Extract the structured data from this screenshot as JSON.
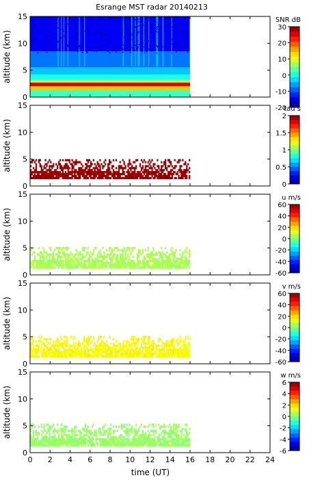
{
  "title": "Esrange MST radar 20140213",
  "xlabel": "time (UT)",
  "x_ticks": [
    "0",
    "2",
    "4",
    "6",
    "8",
    "10",
    "12",
    "14",
    "16",
    "18",
    "20",
    "22",
    "24"
  ],
  "chart_data": [
    {
      "type": "heatmap",
      "ylabel": "altitude (km)",
      "y_ticks": [
        "0",
        "5",
        "10",
        "15"
      ],
      "xlim": [
        0,
        24
      ],
      "ylim": [
        0,
        15
      ],
      "data_extent_x": [
        0,
        16
      ],
      "colorbar": {
        "label": "SNR dB",
        "range": [
          -20,
          30
        ],
        "ticks": [
          "30",
          "20",
          "10",
          "0",
          "-10",
          "-20"
        ]
      },
      "layers": [
        {
          "from": 8.5,
          "to": 15,
          "value": -14
        },
        {
          "from": 5.5,
          "to": 8.5,
          "value": -8
        },
        {
          "from": 4.2,
          "to": 5.5,
          "value": -4
        },
        {
          "from": 3.2,
          "to": 4.2,
          "value": 0
        },
        {
          "from": 2.7,
          "to": 3.2,
          "value": 8
        },
        {
          "from": 2.0,
          "to": 2.7,
          "value": 25
        },
        {
          "from": 1.4,
          "to": 2.0,
          "value": 14
        },
        {
          "from": 0.0,
          "to": 1.4,
          "value": 2
        }
      ]
    },
    {
      "type": "heatmap",
      "ylabel": "altitude (km)",
      "y_ticks": [
        "0",
        "5",
        "10",
        "15"
      ],
      "xlim": [
        0,
        24
      ],
      "ylim": [
        0,
        15
      ],
      "data_extent_x": [
        0,
        16
      ],
      "colorbar": {
        "label": "tau s",
        "range": [
          0,
          2
        ],
        "ticks": [
          "2",
          "1.5",
          "1",
          "0.5",
          "0"
        ]
      },
      "layers": [
        {
          "from": 1.3,
          "to": 5.0,
          "value": 1.95
        }
      ]
    },
    {
      "type": "heatmap",
      "ylabel": "altitude (km)",
      "y_ticks": [
        "0",
        "5",
        "10",
        "15"
      ],
      "xlim": [
        0,
        24
      ],
      "ylim": [
        0,
        15
      ],
      "data_extent_x": [
        0,
        16
      ],
      "colorbar": {
        "label": "u m/s",
        "range": [
          -60,
          60
        ],
        "ticks": [
          "60",
          "40",
          "20",
          "0",
          "-20",
          "-40",
          "-60"
        ]
      },
      "layers": [
        {
          "from": 1.2,
          "to": 5.2,
          "value": 5
        }
      ]
    },
    {
      "type": "heatmap",
      "ylabel": "altitude (km)",
      "y_ticks": [
        "0",
        "5",
        "10",
        "15"
      ],
      "xlim": [
        0,
        24
      ],
      "ylim": [
        0,
        15
      ],
      "data_extent_x": [
        0,
        16
      ],
      "colorbar": {
        "label": "v m/s",
        "range": [
          -60,
          60
        ],
        "ticks": [
          "60",
          "40",
          "20",
          "0",
          "-20",
          "-40",
          "-60"
        ]
      },
      "layers": [
        {
          "from": 1.2,
          "to": 5.2,
          "value": 15
        }
      ]
    },
    {
      "type": "heatmap",
      "ylabel": "altitude (km)",
      "y_ticks": [
        "0",
        "5",
        "10",
        "15"
      ],
      "xlim": [
        0,
        24
      ],
      "ylim": [
        0,
        15
      ],
      "data_extent_x": [
        0,
        16
      ],
      "colorbar": {
        "label": "w m/s",
        "range": [
          -6,
          6
        ],
        "ticks": [
          "6",
          "4",
          "2",
          "0",
          "-2",
          "-4",
          "-6"
        ]
      },
      "layers": [
        {
          "from": 1.2,
          "to": 5.4,
          "value": 0.3
        }
      ]
    }
  ]
}
